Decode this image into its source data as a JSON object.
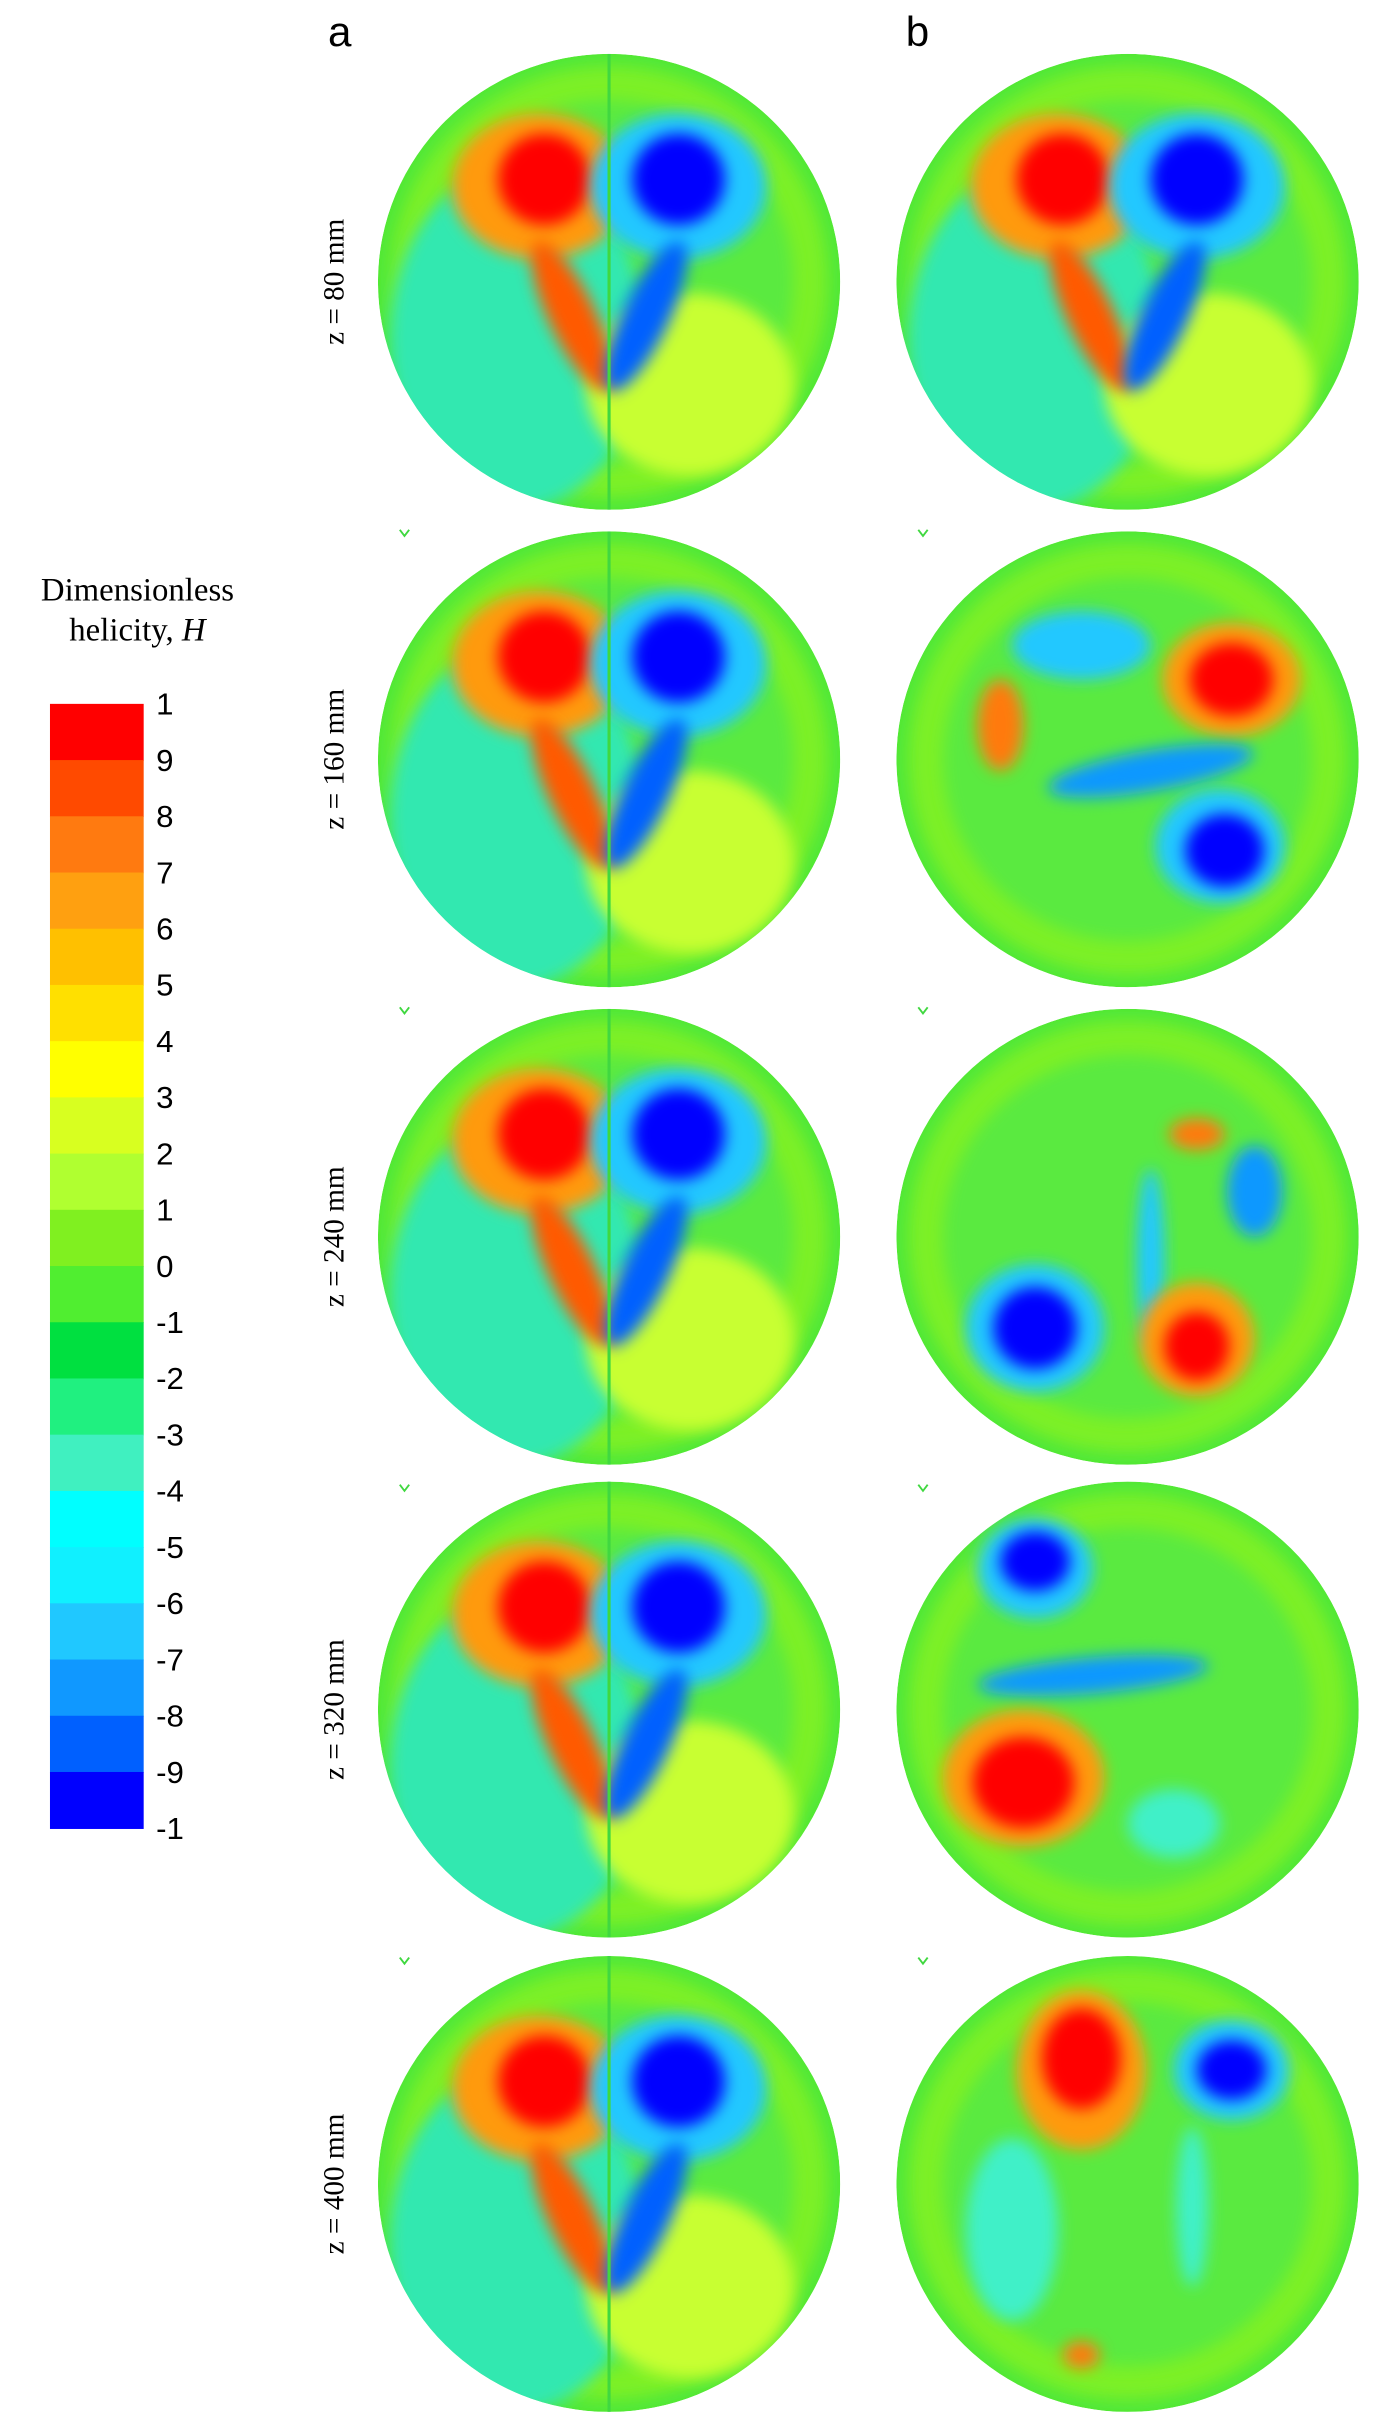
{
  "colorbar": {
    "title_line1": "Dimensionless",
    "title_line2": "helicity, ",
    "title_symbol": "H",
    "labels": [
      "1",
      "9",
      "8",
      "7",
      "6",
      "5",
      "4",
      "3",
      "2",
      "1",
      "0",
      "-1",
      "-2",
      "-3",
      "-4",
      "-5",
      "-6",
      "-7",
      "-8",
      "-9",
      "-1"
    ],
    "colors": [
      "#ff0000",
      "#ff4a00",
      "#ff7a10",
      "#ffa010",
      "#ffc000",
      "#ffe000",
      "#ffff00",
      "#d8ff20",
      "#b0ff30",
      "#80f020",
      "#50ee30",
      "#00e040",
      "#20f080",
      "#40f0c0",
      "#00ffff",
      "#10f0ff",
      "#20c8ff",
      "#1098ff",
      "#0060ff",
      "#0000ff"
    ]
  },
  "columns": [
    "a",
    "b"
  ],
  "rows": [
    "z = 80 mm",
    "z = 160 mm",
    "z = 240 mm",
    "z = 320 mm",
    "z = 400 mm"
  ]
}
